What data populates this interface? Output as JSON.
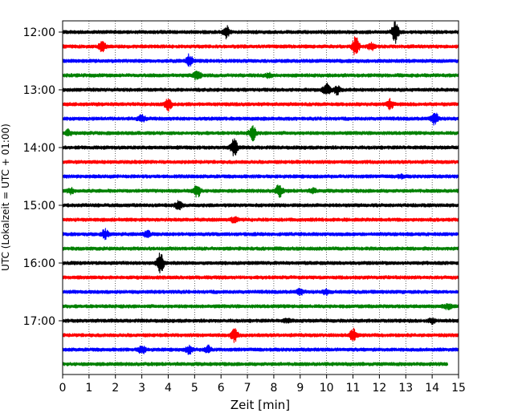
{
  "chart_data": {
    "type": "line",
    "title": "",
    "xlabel": "Zeit  [min]",
    "ylabel": "UTC (Lokalzeit = UTC + 01:00)",
    "xlim": [
      0,
      15
    ],
    "x_ticks": [
      0,
      1,
      2,
      3,
      4,
      5,
      6,
      7,
      8,
      9,
      10,
      11,
      12,
      13,
      14,
      15
    ],
    "x_tick_labels": [
      "0",
      "1",
      "2",
      "3",
      "4",
      "5",
      "6",
      "7",
      "8",
      "9",
      "10",
      "11",
      "12",
      "13",
      "14",
      "15"
    ],
    "y_tick_labels": [
      "12:00",
      "13:00",
      "14:00",
      "15:00",
      "16:00",
      "17:00"
    ],
    "grid": "vertical dotted",
    "colors": [
      "#000000",
      "#ff0000",
      "#0000ff",
      "#008000"
    ],
    "rows": [
      {
        "label": "12:00",
        "color": "#000000",
        "events": [
          [
            6.2,
            1.2
          ],
          [
            12.6,
            2.2
          ]
        ]
      },
      {
        "label": "12:15",
        "color": "#ff0000",
        "events": [
          [
            1.5,
            1.0
          ],
          [
            11.1,
            2.0
          ],
          [
            11.7,
            0.6
          ]
        ]
      },
      {
        "label": "12:30",
        "color": "#0000ff",
        "events": [
          [
            4.8,
            1.2
          ]
        ]
      },
      {
        "label": "12:45",
        "color": "#008000",
        "events": [
          [
            5.1,
            1.0
          ],
          [
            7.8,
            0.4
          ]
        ]
      },
      {
        "label": "13:00",
        "color": "#000000",
        "events": [
          [
            10.0,
            1.2
          ],
          [
            10.4,
            0.8
          ]
        ]
      },
      {
        "label": "13:15",
        "color": "#ff0000",
        "events": [
          [
            4.0,
            1.2
          ],
          [
            12.4,
            0.9
          ]
        ]
      },
      {
        "label": "13:30",
        "color": "#0000ff",
        "events": [
          [
            3.0,
            0.8
          ],
          [
            14.1,
            1.2
          ]
        ]
      },
      {
        "label": "13:45",
        "color": "#008000",
        "events": [
          [
            0.2,
            0.6
          ],
          [
            7.2,
            1.4
          ]
        ]
      },
      {
        "label": "14:00",
        "color": "#000000",
        "events": [
          [
            6.5,
            1.8
          ]
        ]
      },
      {
        "label": "14:15",
        "color": "#ff0000",
        "events": []
      },
      {
        "label": "14:30",
        "color": "#0000ff",
        "events": [
          [
            12.8,
            0.3
          ]
        ]
      },
      {
        "label": "14:45",
        "color": "#008000",
        "events": [
          [
            0.3,
            0.5
          ],
          [
            5.1,
            1.2
          ],
          [
            8.2,
            1.2
          ],
          [
            9.5,
            0.4
          ]
        ]
      },
      {
        "label": "15:00",
        "color": "#000000",
        "events": [
          [
            4.4,
            0.8
          ]
        ]
      },
      {
        "label": "15:15",
        "color": "#ff0000",
        "events": [
          [
            6.5,
            0.5
          ]
        ]
      },
      {
        "label": "15:30",
        "color": "#0000ff",
        "events": [
          [
            1.6,
            0.9
          ],
          [
            3.2,
            0.6
          ]
        ]
      },
      {
        "label": "15:45",
        "color": "#008000",
        "events": []
      },
      {
        "label": "16:00",
        "color": "#000000",
        "events": [
          [
            3.7,
            2.2
          ]
        ]
      },
      {
        "label": "16:15",
        "color": "#ff0000",
        "events": []
      },
      {
        "label": "16:30",
        "color": "#0000ff",
        "events": [
          [
            9.0,
            0.5
          ],
          [
            10.0,
            0.5
          ]
        ]
      },
      {
        "label": "16:45",
        "color": "#008000",
        "events": [
          [
            14.6,
            0.5
          ]
        ]
      },
      {
        "label": "17:00",
        "color": "#000000",
        "events": [
          [
            8.5,
            0.3
          ],
          [
            14.0,
            0.5
          ]
        ]
      },
      {
        "label": "17:15",
        "color": "#ff0000",
        "events": [
          [
            6.5,
            1.2
          ],
          [
            11.0,
            1.2
          ]
        ]
      },
      {
        "label": "17:30",
        "color": "#0000ff",
        "events": [
          [
            3.0,
            0.8
          ],
          [
            4.8,
            0.8
          ],
          [
            5.5,
            0.7
          ]
        ]
      },
      {
        "label": "17:45",
        "color": "#008000",
        "events": [],
        "end_x": 14.6
      }
    ]
  }
}
